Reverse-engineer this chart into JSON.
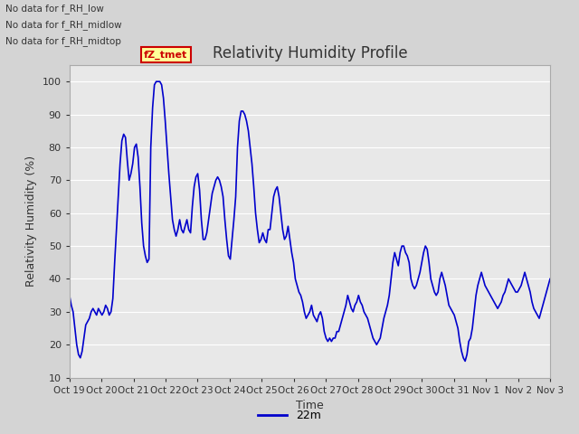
{
  "title": "Relativity Humidity Profile",
  "xlabel": "Time",
  "ylabel": "Relativity Humidity (%)",
  "ylim": [
    10,
    105
  ],
  "yticks": [
    10,
    20,
    30,
    40,
    50,
    60,
    70,
    80,
    90,
    100
  ],
  "line_color": "#0000cc",
  "line_width": 1.2,
  "legend_label": "22m",
  "legend_line_color": "#0000cc",
  "no_data_texts": [
    "No data for f_RH_low",
    "No data for f_RH_midlow",
    "No data for f_RH_midtop"
  ],
  "tz_tmet_label": "fZ_tmet",
  "tz_tmet_box_color": "#cc0000",
  "tz_tmet_bg": "#ffff99",
  "x_tick_labels": [
    "Oct 19",
    "Oct 20",
    "Oct 21",
    "Oct 22",
    "Oct 23",
    "Oct 24",
    "Oct 25",
    "Oct 26",
    "Oct 27",
    "Oct 28",
    "Oct 29",
    "Oct 30",
    "Oct 31",
    "Nov 1",
    "Nov 2",
    "Nov 3"
  ],
  "fig_bg_color": "#d4d4d4",
  "plot_bg_color": "#e8e8e8",
  "grid_color": "#ffffff",
  "rh_values": [
    35,
    32,
    30,
    25,
    20,
    17,
    16,
    18,
    22,
    26,
    27,
    28,
    30,
    31,
    30,
    29,
    31,
    30,
    29,
    30,
    32,
    31,
    29,
    30,
    34,
    45,
    55,
    65,
    75,
    82,
    84,
    83,
    76,
    70,
    72,
    75,
    80,
    81,
    77,
    68,
    57,
    50,
    47,
    45,
    46,
    80,
    92,
    99,
    100,
    100,
    100,
    99,
    95,
    88,
    80,
    72,
    65,
    58,
    55,
    53,
    55,
    58,
    55,
    54,
    56,
    58,
    55,
    54,
    62,
    68,
    71,
    72,
    67,
    58,
    52,
    52,
    54,
    58,
    62,
    66,
    68,
    70,
    71,
    70,
    68,
    65,
    58,
    52,
    47,
    46,
    52,
    58,
    65,
    80,
    88,
    91,
    91,
    90,
    88,
    85,
    80,
    75,
    68,
    60,
    55,
    51,
    52,
    54,
    52,
    51,
    55,
    55,
    60,
    65,
    67,
    68,
    65,
    60,
    55,
    52,
    53,
    56,
    52,
    48,
    45,
    40,
    38,
    36,
    35,
    33,
    30,
    28,
    29,
    30,
    32,
    29,
    28,
    27,
    29,
    30,
    28,
    24,
    22,
    21,
    22,
    21,
    22,
    22,
    24,
    24,
    26,
    28,
    30,
    32,
    35,
    33,
    31,
    30,
    32,
    33,
    35,
    33,
    32,
    30,
    29,
    28,
    26,
    24,
    22,
    21,
    20,
    21,
    22,
    25,
    28,
    30,
    32,
    35,
    40,
    45,
    48,
    46,
    44,
    48,
    50,
    50,
    48,
    47,
    45,
    40,
    38,
    37,
    38,
    40,
    42,
    45,
    48,
    50,
    49,
    45,
    40,
    38,
    36,
    35,
    36,
    40,
    42,
    40,
    38,
    35,
    32,
    31,
    30,
    29,
    27,
    25,
    21,
    18,
    16,
    15,
    17,
    21,
    22,
    25,
    30,
    35,
    38,
    40,
    42,
    40,
    38,
    37,
    36,
    35,
    34,
    33,
    32,
    31,
    32,
    33,
    35,
    36,
    38,
    40,
    39,
    38,
    37,
    36,
    36,
    37,
    38,
    40,
    42,
    40,
    38,
    36,
    33,
    31,
    30,
    29,
    28,
    30,
    32,
    34,
    36,
    38,
    40
  ]
}
